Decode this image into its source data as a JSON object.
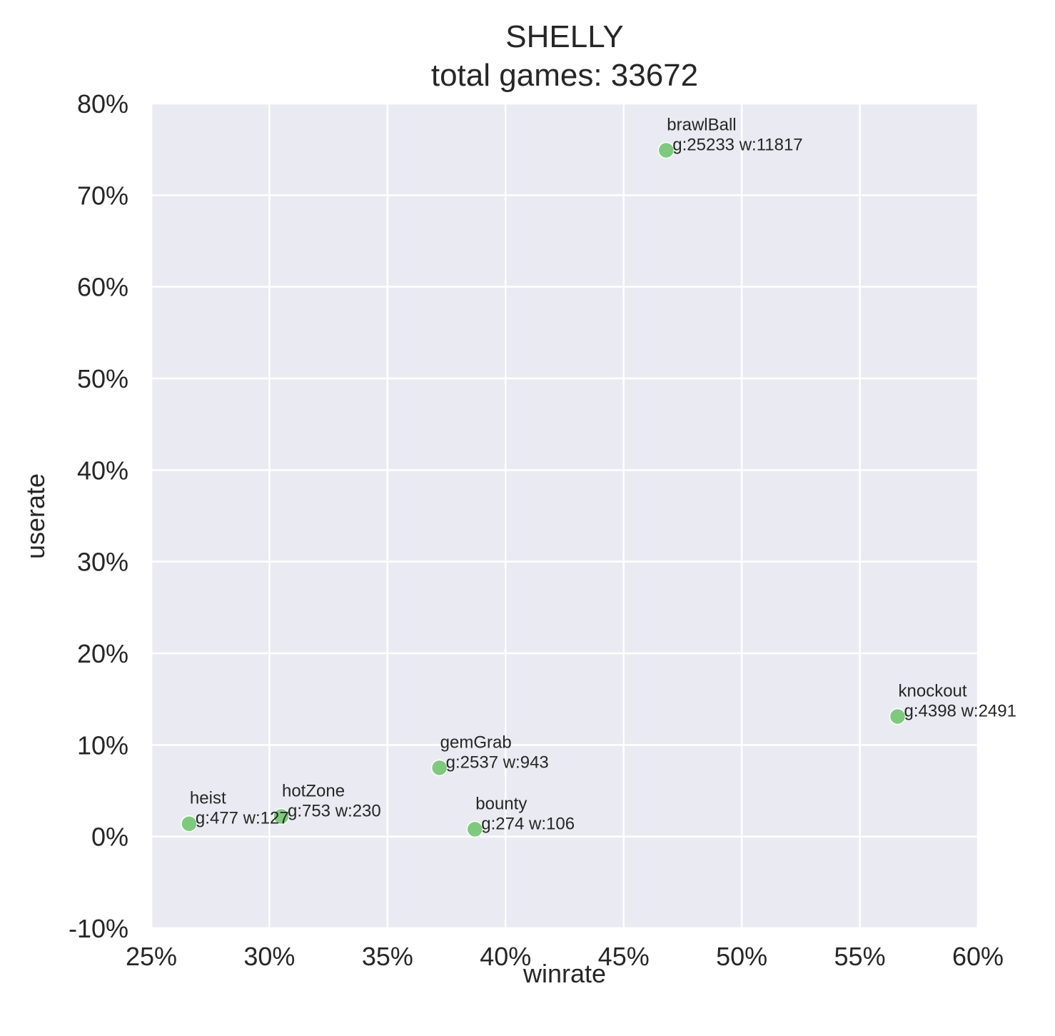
{
  "chart_data": {
    "type": "scatter",
    "title": "SHELLY",
    "subtitle": "total games: 33672",
    "xlabel": "winrate",
    "ylabel": "userate",
    "xlim": [
      0.25,
      0.6
    ],
    "ylim": [
      -0.1,
      0.8
    ],
    "x_ticks": [
      0.25,
      0.3,
      0.35,
      0.4,
      0.45,
      0.5,
      0.55,
      0.6
    ],
    "x_tick_labels": [
      "25%",
      "30%",
      "35%",
      "40%",
      "45%",
      "50%",
      "55%",
      "60%"
    ],
    "y_ticks": [
      -0.1,
      0.0,
      0.1,
      0.2,
      0.3,
      0.4,
      0.5,
      0.6,
      0.7,
      0.8
    ],
    "y_tick_labels": [
      "-10%",
      "0%",
      "10%",
      "20%",
      "30%",
      "40%",
      "50%",
      "60%",
      "70%",
      "80%"
    ],
    "grid": true,
    "colors": {
      "background": "#eaeaf2",
      "grid": "#ffffff",
      "marker": "#7fc97f",
      "marker_edge": "#ffffff"
    },
    "points": [
      {
        "mode": "brawlBall",
        "stats": "g:25233 w:11817",
        "x": 0.468,
        "y": 0.749
      },
      {
        "mode": "knockout",
        "stats": "g:4398 w:2491",
        "x": 0.566,
        "y": 0.131
      },
      {
        "mode": "gemGrab",
        "stats": "g:2537 w:943",
        "x": 0.372,
        "y": 0.075
      },
      {
        "mode": "hotZone",
        "stats": "g:753 w:230",
        "x": 0.305,
        "y": 0.022
      },
      {
        "mode": "heist",
        "stats": "g:477 w:127",
        "x": 0.266,
        "y": 0.014
      },
      {
        "mode": "bounty",
        "stats": "g:274 w:106",
        "x": 0.387,
        "y": 0.008
      }
    ]
  }
}
